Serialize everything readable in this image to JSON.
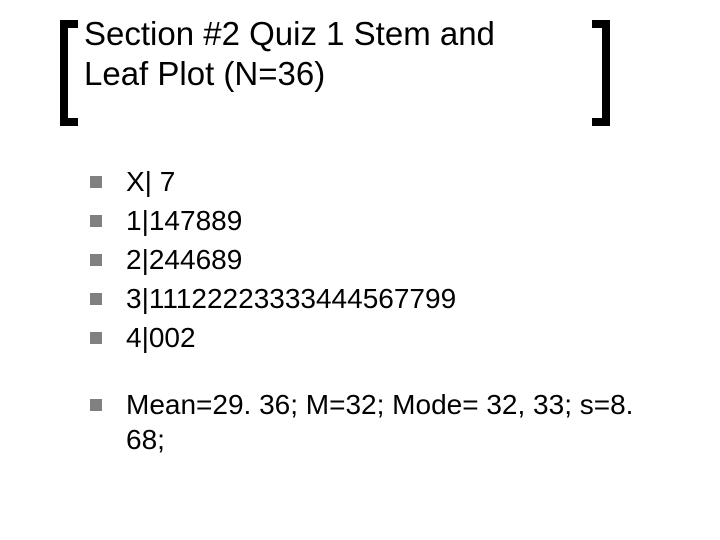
{
  "title": "Section #2  Quiz 1 Stem and Leaf Plot (N=36)",
  "bullets": {
    "group1": [
      "X| 7",
      "1|147889",
      "2|244689",
      "3|11122223333444567799",
      "4|002"
    ],
    "group2": [
      "Mean=29. 36; M=32; Mode= 32, 33; s=8. 68;"
    ]
  },
  "style": {
    "bullet_color": "#808080",
    "bracket_color": "#000000",
    "title_fontsize": 33,
    "body_fontsize": 28,
    "background": "#ffffff"
  }
}
